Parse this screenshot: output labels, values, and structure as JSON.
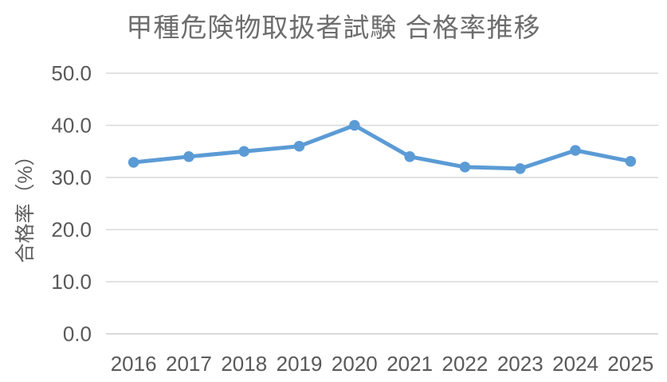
{
  "chart_data": {
    "type": "line",
    "title": "甲種危険物取扱者試験 合格率推移",
    "xlabel": "",
    "ylabel": "合格率（%）",
    "categories": [
      "2016",
      "2017",
      "2018",
      "2019",
      "2020",
      "2021",
      "2022",
      "2023",
      "2024",
      "2025"
    ],
    "series": [
      {
        "name": "合格率",
        "values": [
          32.9,
          34.0,
          35.0,
          36.0,
          40.0,
          34.0,
          32.0,
          31.7,
          35.2,
          33.1
        ]
      }
    ],
    "ylim": [
      0,
      50
    ],
    "ytick_step": 10,
    "ytick_labels": [
      "0.0",
      "10.0",
      "20.0",
      "30.0",
      "40.0",
      "50.0"
    ],
    "grid": "horizontal",
    "legend": "none",
    "colors": {
      "line": "#5B9BD5",
      "marker": "#5B9BD5",
      "gridline": "#d9d9d9",
      "axis_line": "#cccccc",
      "tick_text": "#595959",
      "title_text": "#6d6d6d"
    }
  }
}
